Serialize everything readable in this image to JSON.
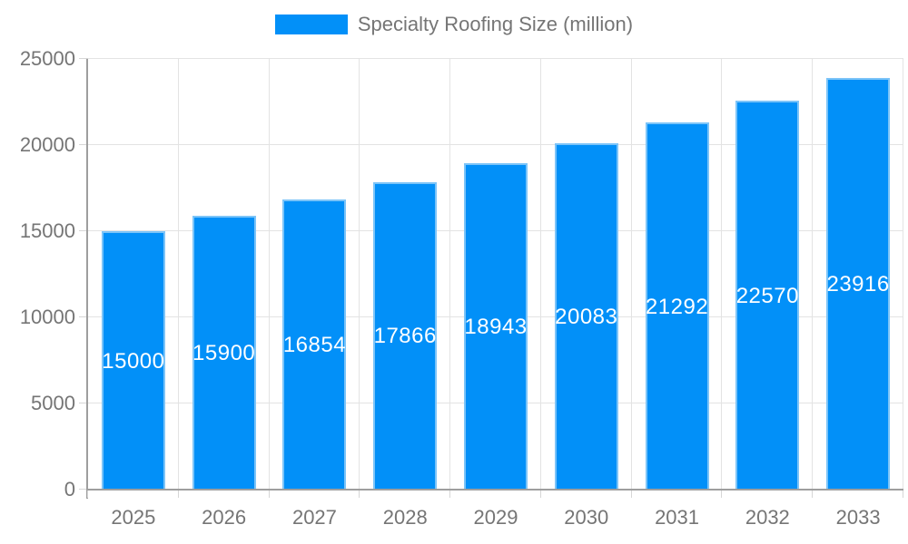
{
  "legend": {
    "label": "Specialty Roofing Size (million)"
  },
  "colors": {
    "bar_fill": "#0290f8",
    "bar_border": "#7cc4f8",
    "grid": "#e3e3e3",
    "axis_line": "#9e9e9e",
    "tick_mark": "#d6d6d6",
    "tick_text": "#757575",
    "legend_text": "#757575",
    "value_label_text": "#ffffff",
    "background": "#ffffff"
  },
  "chart_data": {
    "type": "bar",
    "title": "",
    "categories": [
      "2025",
      "2026",
      "2027",
      "2028",
      "2029",
      "2030",
      "2031",
      "2032",
      "2033"
    ],
    "series": [
      {
        "name": "Specialty Roofing Size (million)",
        "values": [
          15000,
          15900,
          16854,
          17866,
          18943,
          20083,
          21292,
          22570,
          23916
        ]
      }
    ],
    "values": [
      15000,
      15900,
      16854,
      17866,
      18943,
      20083,
      21292,
      22570,
      23916
    ],
    "value_labels": [
      "15000",
      "15900",
      "16854",
      "17866",
      "18943",
      "20083",
      "21292",
      "22570",
      "23916"
    ],
    "xlabel": "",
    "ylabel": "",
    "ylim": [
      0,
      25000
    ],
    "yticks": [
      0,
      5000,
      10000,
      15000,
      20000,
      25000
    ],
    "ytick_labels": [
      "0",
      "5000",
      "10000",
      "15000",
      "20000",
      "25000"
    ],
    "grid": true,
    "legend_position": "top",
    "value_label_position": "inside-center"
  }
}
